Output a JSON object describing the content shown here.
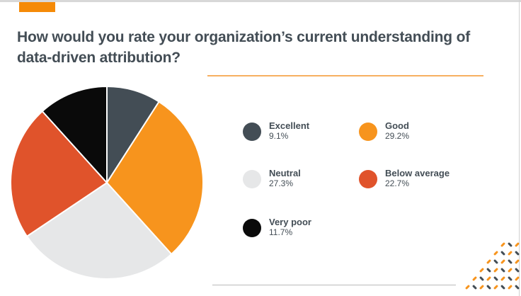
{
  "chart_data": {
    "type": "pie",
    "title": "How would you rate your organization’s current understanding of data-driven attribution?",
    "slices": [
      {
        "label": "Excellent",
        "value": 9.1,
        "display": "9.1%",
        "color": "#434d55"
      },
      {
        "label": "Good",
        "value": 29.2,
        "display": "29.2%",
        "color": "#f7941d"
      },
      {
        "label": "Neutral",
        "value": 27.3,
        "display": "27.3%",
        "color": "#e6e7e8"
      },
      {
        "label": "Below average",
        "value": 22.7,
        "display": "22.7%",
        "color": "#e0532b"
      },
      {
        "label": "Very poor",
        "value": 11.7,
        "display": "11.7%",
        "color": "#0a0a0a"
      }
    ],
    "legend_placement": "right"
  }
}
